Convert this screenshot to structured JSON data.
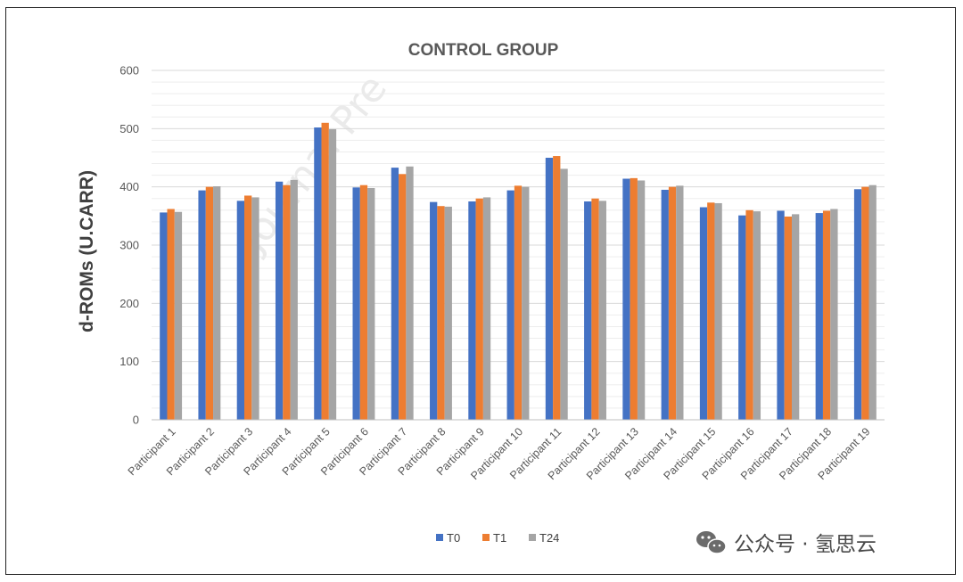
{
  "watermark": "Journal Pre",
  "footer": {
    "icon": "wechat-icon",
    "text": "公众号 · 氢思云"
  },
  "chart_data": {
    "type": "bar",
    "title": "CONTROL GROUP",
    "ylabel": "d-ROMs (U.CARR)",
    "xlabel": "",
    "ylim": [
      0,
      600
    ],
    "yticks": [
      0,
      100,
      200,
      300,
      400,
      500,
      600
    ],
    "grid": true,
    "legend_position": "bottom",
    "categories": [
      "Participant 1",
      "Participant 2",
      "Participant 3",
      "Participant 4",
      "Participant 5",
      "Participant 6",
      "Participant 7",
      "Participant 8",
      "Participant 9",
      "Participant 10",
      "Participant 11",
      "Participant 12",
      "Participant 13",
      "Participant 14",
      "Participant 15",
      "Participant 16",
      "Participant 17",
      "Participant 18",
      "Participant 19"
    ],
    "series": [
      {
        "name": "T0",
        "color": "#4472C4",
        "values": [
          356,
          394,
          376,
          409,
          502,
          399,
          433,
          374,
          375,
          394,
          450,
          375,
          414,
          395,
          365,
          351,
          359,
          355,
          396
        ]
      },
      {
        "name": "T1",
        "color": "#ED7D31",
        "values": [
          362,
          400,
          385,
          403,
          510,
          403,
          422,
          367,
          380,
          402,
          453,
          380,
          415,
          400,
          373,
          360,
          349,
          359,
          400
        ]
      },
      {
        "name": "T24",
        "color": "#A5A5A5",
        "values": [
          357,
          401,
          382,
          412,
          499,
          398,
          435,
          366,
          382,
          400,
          431,
          376,
          411,
          402,
          372,
          358,
          353,
          362,
          403
        ]
      }
    ]
  }
}
